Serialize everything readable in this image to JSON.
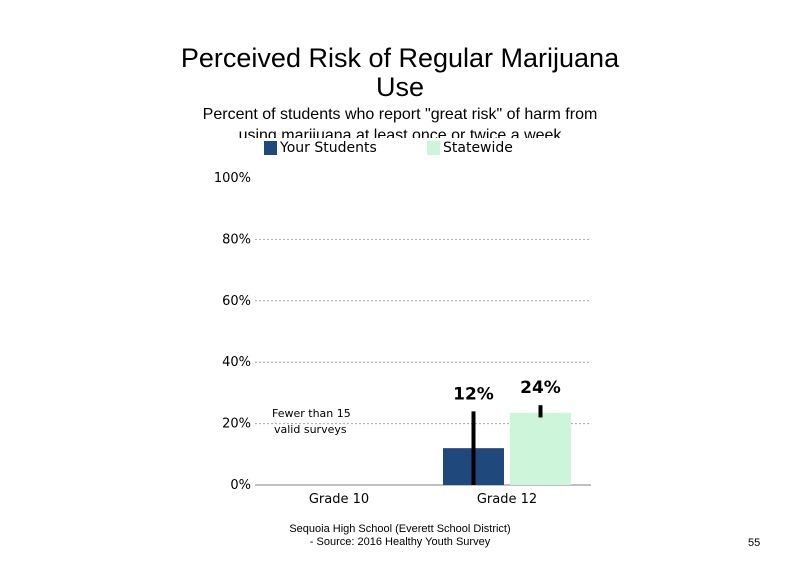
{
  "title_line1": "Perceived Risk of Regular Marijuana",
  "title_line2": "Use",
  "subtitle": "Percent of students who report \"great risk\" of harm from using marijuana at least once or twice a week",
  "footer_line1": "Sequoia High School (Everett School District)",
  "footer_line2": "- Source: 2016 Healthy Youth Survey",
  "page_number": "55",
  "colors": {
    "your_students": "#1f497d",
    "statewide": "#ccf5d9",
    "error_bar": "#000000",
    "grid": "#a6a6a6"
  },
  "chart_data": {
    "type": "bar",
    "categories": [
      "Grade 10",
      "Grade 12"
    ],
    "series": [
      {
        "name": "Your Students",
        "values": [
          null,
          12
        ],
        "labels": [
          null,
          "12%"
        ],
        "error_low": [
          null,
          0
        ],
        "error_high": [
          null,
          24
        ]
      },
      {
        "name": "Statewide",
        "values": [
          null,
          23.5
        ],
        "labels": [
          null,
          "24%"
        ],
        "error_low": [
          null,
          22
        ],
        "error_high": [
          null,
          26
        ]
      }
    ],
    "y_ticks": [
      "0%",
      "20%",
      "40%",
      "60%",
      "80%",
      "100%"
    ],
    "ylim": [
      0,
      100
    ],
    "grid": true,
    "legend_position": "top",
    "annotations": [
      {
        "category": "Grade 10",
        "line1": "Fewer than 15",
        "line2": "valid surveys"
      }
    ]
  }
}
